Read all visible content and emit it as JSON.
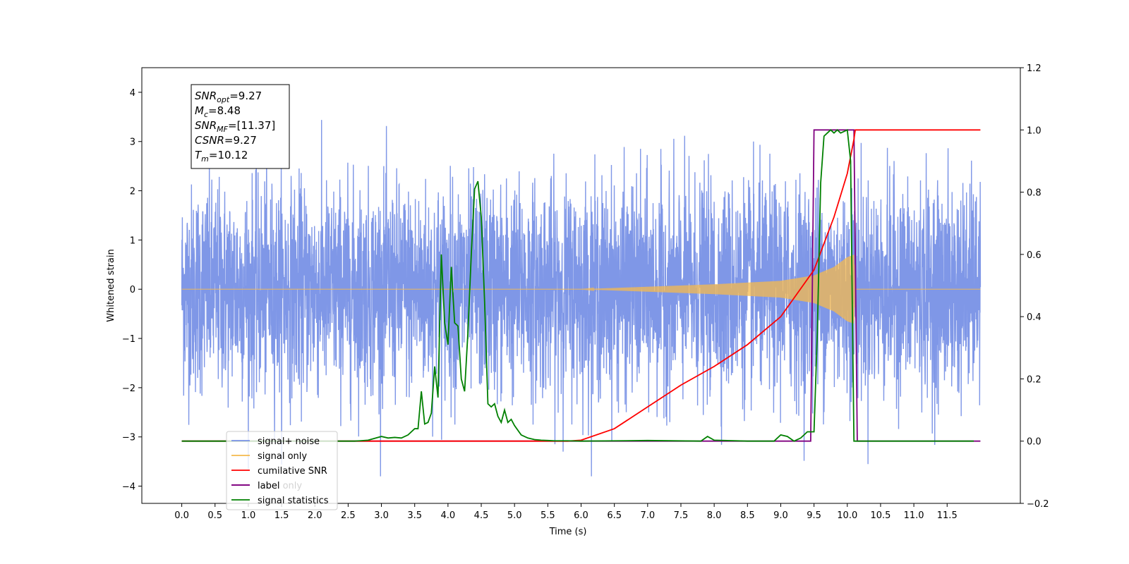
{
  "chart_data": {
    "type": "line",
    "xlabel": "Time (s)",
    "ylabel": "Whitened strain",
    "xlim": [
      -0.6,
      12.6
    ],
    "ylim": [
      -4.35,
      4.5
    ],
    "ylim_right": [
      -0.2,
      1.2
    ],
    "x_ticks": [
      "0.0",
      "0.5",
      "1.0",
      "1.5",
      "2.0",
      "2.5",
      "3.0",
      "3.5",
      "4.0",
      "4.5",
      "5.0",
      "5.5",
      "6.0",
      "6.5",
      "7.0",
      "7.5",
      "8.0",
      "8.5",
      "9.0",
      "9.5",
      "10.0",
      "10.5",
      "11.0",
      "11.5"
    ],
    "y_ticks": [
      "4",
      "3",
      "2",
      "1",
      "0",
      "−1",
      "−2",
      "−3",
      "−4"
    ],
    "y_ticks_right": [
      "1.2",
      "1.0",
      "0.8",
      "0.6",
      "0.4",
      "0.2",
      "0.0",
      "−0.2"
    ],
    "grid": false,
    "legend_position": "lower-left",
    "info_box": {
      "lines": [
        {
          "sym": "SNR",
          "sub": "opt",
          "val": "=9.27"
        },
        {
          "sym": "M",
          "sub": "c",
          "val": "=8.48"
        },
        {
          "sym": "SNR",
          "sub": "MF",
          "val": "=[11.37]"
        },
        {
          "sym": "CSNR",
          "sub": "",
          "val": "=9.27"
        },
        {
          "sym": "T",
          "sub": "m",
          "val": "=10.12"
        }
      ]
    },
    "series": [
      {
        "name": "signal+ noise",
        "axis": "left",
        "color": "#7891e6",
        "x_range": [
          0.0,
          12.0
        ],
        "typical_amplitude": 1.5,
        "min": -3.8,
        "max": 4.1
      },
      {
        "name": "signal only",
        "axis": "left",
        "color": "#f5b94d",
        "x_range": [
          0.0,
          12.0
        ],
        "envelope_x": [
          6.0,
          7.0,
          8.0,
          9.0,
          9.5,
          9.8,
          10.0,
          10.1,
          10.12
        ],
        "envelope_y": [
          0.0,
          0.05,
          0.1,
          0.17,
          0.28,
          0.45,
          0.65,
          0.7,
          0.0
        ]
      },
      {
        "name": "cumilative SNR",
        "axis": "right",
        "color": "#ff0000",
        "x": [
          0.0,
          5.8,
          6.0,
          6.5,
          7.0,
          7.5,
          8.0,
          8.5,
          9.0,
          9.5,
          9.8,
          10.0,
          10.1,
          10.12,
          12.0
        ],
        "y": [
          0.0,
          0.0,
          0.003,
          0.04,
          0.11,
          0.18,
          0.24,
          0.31,
          0.4,
          0.55,
          0.72,
          0.86,
          0.97,
          1.0,
          1.0
        ]
      },
      {
        "name": "label",
        "axis": "right",
        "color": "#800080",
        "x": [
          0.0,
          9.45,
          9.5,
          10.1,
          10.15,
          12.0
        ],
        "y": [
          0.0,
          0.0,
          1.0,
          1.0,
          0.0,
          0.0
        ]
      },
      {
        "name": "label only",
        "axis": "right",
        "color": "#800080",
        "x": [],
        "y": []
      },
      {
        "name": "signal statistics",
        "axis": "right",
        "color": "#008000",
        "x": [
          0.0,
          2.6,
          2.8,
          3.0,
          3.1,
          3.2,
          3.3,
          3.4,
          3.5,
          3.55,
          3.6,
          3.65,
          3.7,
          3.75,
          3.8,
          3.85,
          3.9,
          3.95,
          4.0,
          4.05,
          4.1,
          4.15,
          4.2,
          4.25,
          4.3,
          4.35,
          4.4,
          4.45,
          4.5,
          4.55,
          4.6,
          4.65,
          4.7,
          4.75,
          4.8,
          4.85,
          4.9,
          4.95,
          5.0,
          5.1,
          5.2,
          5.3,
          5.4,
          5.5,
          5.6,
          5.8,
          6.0,
          7.0,
          7.8,
          7.9,
          8.0,
          8.5,
          8.9,
          9.0,
          9.1,
          9.2,
          9.3,
          9.4,
          9.5,
          9.55,
          9.6,
          9.65,
          9.7,
          9.75,
          9.8,
          9.85,
          9.9,
          10.0,
          10.05,
          10.08,
          10.1,
          10.15,
          10.2,
          11.9
        ],
        "y": [
          0.0,
          0.0,
          0.003,
          0.015,
          0.01,
          0.012,
          0.01,
          0.02,
          0.04,
          0.04,
          0.16,
          0.055,
          0.06,
          0.09,
          0.24,
          0.14,
          0.6,
          0.38,
          0.31,
          0.56,
          0.38,
          0.37,
          0.2,
          0.16,
          0.35,
          0.6,
          0.81,
          0.835,
          0.72,
          0.45,
          0.12,
          0.11,
          0.12,
          0.08,
          0.06,
          0.1,
          0.06,
          0.07,
          0.05,
          0.02,
          0.01,
          0.005,
          0.003,
          0.002,
          0.001,
          0.001,
          0.0,
          0.002,
          0.0,
          0.015,
          0.003,
          0.0,
          0.0,
          0.02,
          0.015,
          0.0,
          0.01,
          0.03,
          0.03,
          0.35,
          0.83,
          0.98,
          0.99,
          1.0,
          0.99,
          1.0,
          0.99,
          1.0,
          0.9,
          0.35,
          0.0,
          0.0,
          0.0,
          0.0
        ]
      }
    ]
  }
}
